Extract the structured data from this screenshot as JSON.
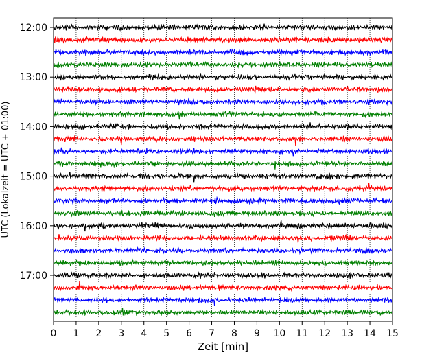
{
  "chart_data": {
    "type": "line",
    "title": "",
    "xlabel": "Zeit  [min]",
    "ylabel": "UTC (Lokalzeit = UTC + 01:00)",
    "xlim": [
      0,
      15
    ],
    "x_ticks": [
      0,
      1,
      2,
      3,
      4,
      5,
      6,
      7,
      8,
      9,
      10,
      11,
      12,
      13,
      14,
      15
    ],
    "y_ticks": [
      "12:00",
      "13:00",
      "14:00",
      "15:00",
      "16:00",
      "17:00"
    ],
    "grid": "vertical-dotted",
    "trace_minutes": 15,
    "trace_start": "12:00",
    "trace_count": 24,
    "trace_colors": [
      "#000000",
      "#ff0000",
      "#0000ff",
      "#007f00"
    ],
    "signal": "seismic noise (waveform amplitude, random)"
  }
}
